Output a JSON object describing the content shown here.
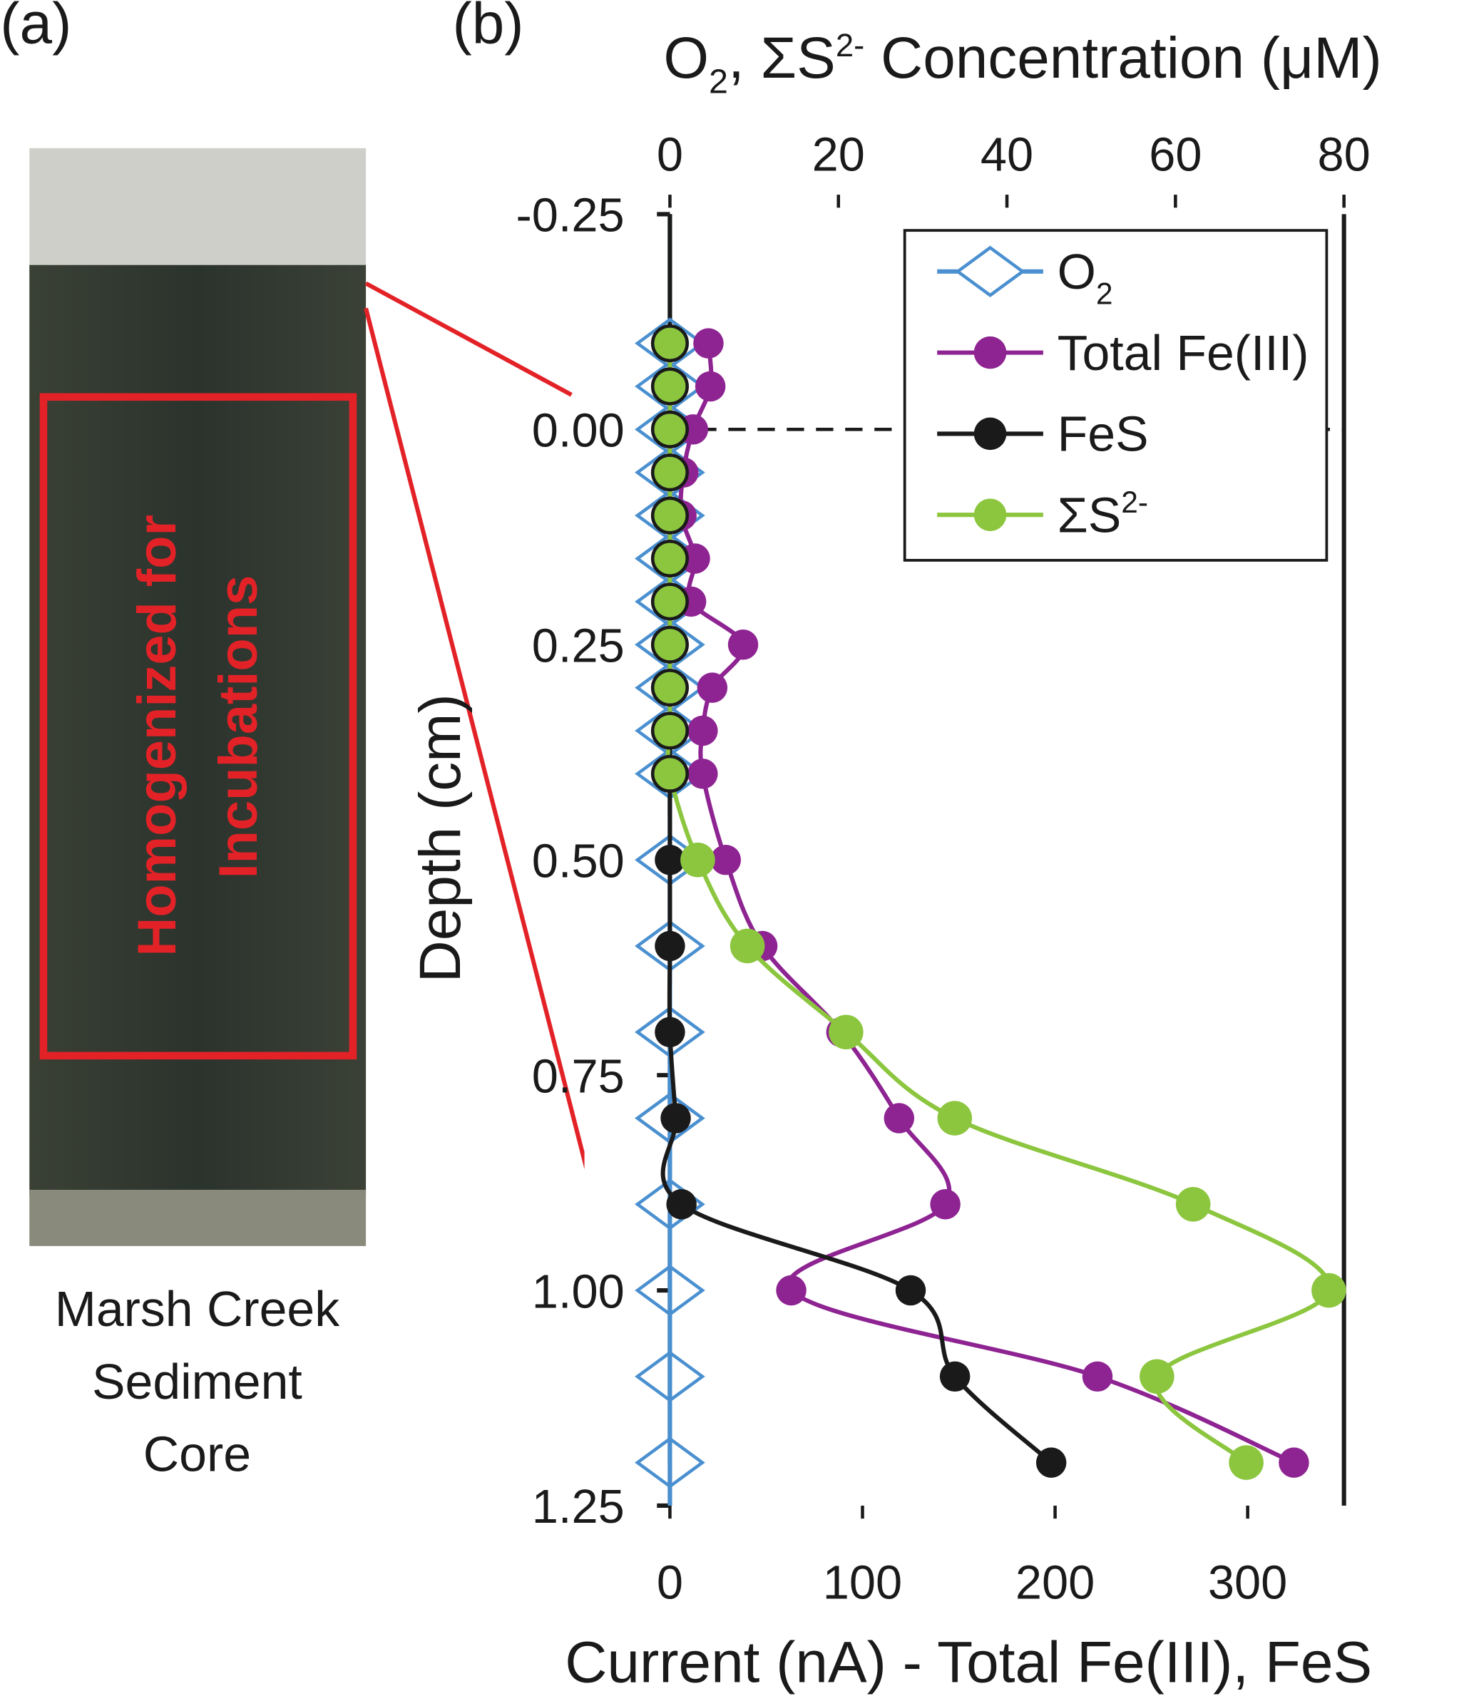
{
  "panels": {
    "a_label": "(a)",
    "b_label": "(b)"
  },
  "photo": {
    "overlay_text_line1": "Homogenized for",
    "overlay_text_line2": "Incubations",
    "caption_line1": "Marsh Creek",
    "caption_line2": "Sediment",
    "caption_line3": "Core",
    "highlight_color": "#e32227"
  },
  "chart_data": {
    "type": "line",
    "title": "",
    "top_xlabel": "O₂, ΣS²⁻ Concentration (μM)",
    "top_xlabel_parts": {
      "a": "O",
      "b": "2",
      "c": ", ΣS",
      "d": "2-",
      "e": " Concentration (μM)"
    },
    "bottom_xlabel": "Current (nA) - Total Fe(III), FeS",
    "ylabel": "Depth (cm)",
    "top_xlim": [
      0,
      80
    ],
    "top_xticks": [
      "0",
      "20",
      "40",
      "60",
      "80"
    ],
    "bottom_xlim": [
      0,
      350
    ],
    "bottom_xticks": [
      "0",
      "100",
      "200",
      "300"
    ],
    "ylim": [
      -0.25,
      1.25
    ],
    "y_reversed": true,
    "yticks": [
      "-0.25",
      "0.00",
      "0.25",
      "0.50",
      "0.75",
      "1.00",
      "1.25"
    ],
    "sediment_water_interface_depth": 0.0,
    "legend_position": "top-right",
    "series": [
      {
        "name": "O",
        "name_sub": "2",
        "axis": "top",
        "color": "#4a90d0",
        "marker": "diamond",
        "depth": [
          -0.1,
          -0.05,
          0,
          0.05,
          0.1,
          0.15,
          0.2,
          0.25,
          0.3,
          0.35,
          0.4,
          0.5,
          0.6,
          0.7,
          0.8,
          0.9,
          1.0,
          1.1,
          1.2
        ],
        "values": [
          0,
          0,
          0,
          0,
          0,
          0,
          0,
          0,
          0,
          0,
          0,
          0,
          0,
          0,
          0,
          0,
          0,
          0,
          0
        ]
      },
      {
        "name": "Total Fe(III)",
        "axis": "bottom",
        "color": "#8e2392",
        "marker": "circle",
        "depth": [
          -0.1,
          -0.05,
          0,
          0.05,
          0.1,
          0.15,
          0.2,
          0.25,
          0.3,
          0.35,
          0.4,
          0.5,
          0.6,
          0.7,
          0.8,
          0.9,
          1.0,
          1.1,
          1.2
        ],
        "values": [
          20,
          21,
          12,
          7,
          6,
          13,
          11,
          38,
          22,
          17,
          17,
          29,
          48,
          89,
          119,
          143,
          63,
          222,
          324
        ]
      },
      {
        "name": "FeS",
        "axis": "bottom",
        "color": "#1a1a1a",
        "marker": "circle",
        "depth": [
          -0.1,
          -0.05,
          0,
          0.05,
          0.1,
          0.15,
          0.2,
          0.25,
          0.3,
          0.35,
          0.4,
          0.5,
          0.6,
          0.7,
          0.8,
          0.9,
          1.0,
          1.1,
          1.2
        ],
        "values": [
          0,
          0,
          0,
          0,
          0,
          0,
          0,
          0,
          0,
          0,
          0,
          0,
          0,
          0,
          3,
          6,
          125,
          148,
          198
        ]
      },
      {
        "name": "ΣS",
        "name_sup": "2-",
        "axis": "top",
        "color": "#8cc63f",
        "marker": "circle",
        "depth": [
          -0.1,
          -0.05,
          0,
          0.05,
          0.1,
          0.15,
          0.2,
          0.25,
          0.3,
          0.35,
          0.4,
          0.5,
          0.6,
          0.7,
          0.8,
          0.9,
          1.0,
          1.1,
          1.2
        ],
        "values": [
          0,
          0,
          0,
          0,
          0,
          0,
          0,
          0,
          0,
          0,
          0,
          3.3,
          9.2,
          20.9,
          33.8,
          62.1,
          78.2,
          57.8,
          68.4
        ]
      }
    ]
  }
}
